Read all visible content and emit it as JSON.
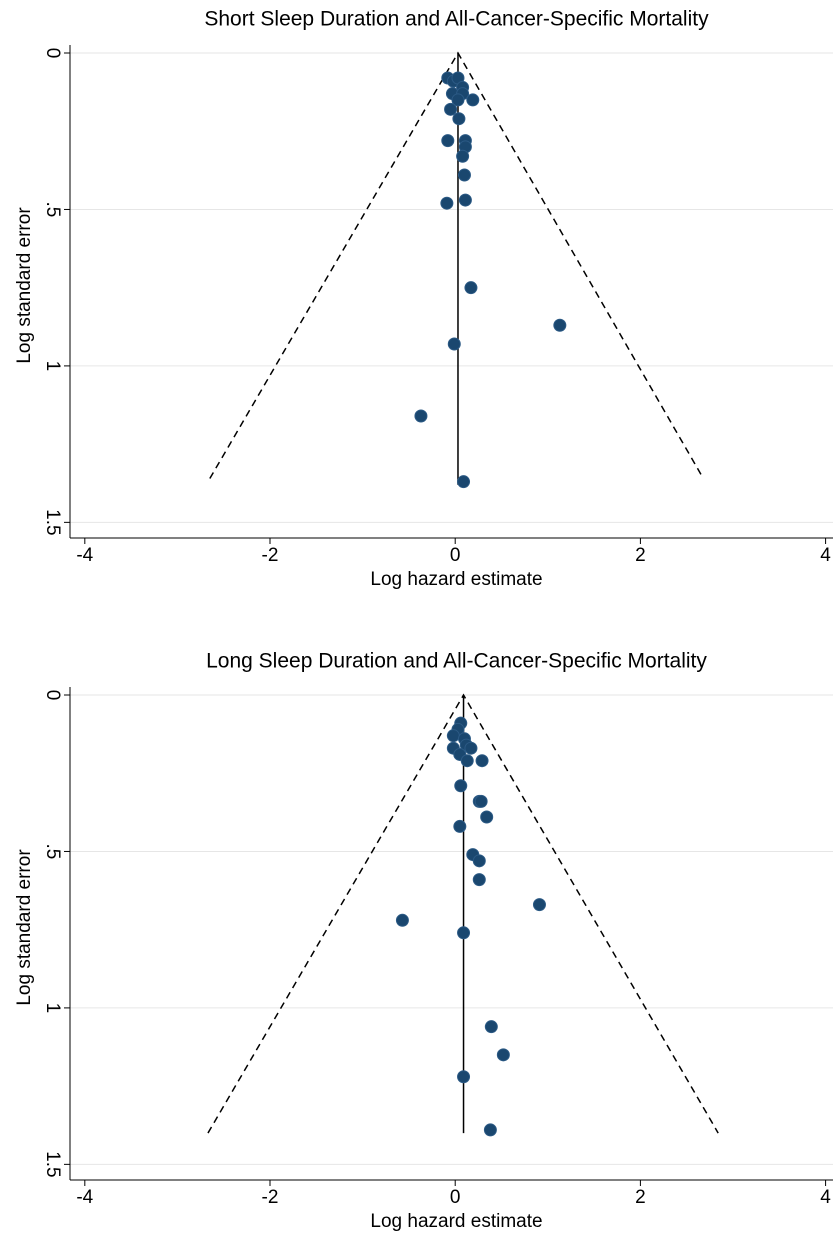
{
  "chart_data": [
    {
      "type": "scatter",
      "title": "Short Sleep Duration and All-Cancer-Specific Mortality",
      "x_label": "Log hazard estimate",
      "y_label": "Log standard error",
      "xlim": [
        -4.16,
        4.08
      ],
      "ylim": [
        0,
        1.55
      ],
      "y_inverted": true,
      "xticks": [
        -4,
        -2,
        0,
        2,
        4
      ],
      "yticks": [
        0,
        {
          "value": 0.5,
          "label": ".5"
        },
        1,
        1.5
      ],
      "grid": true,
      "color": "#1a476f",
      "funnel": {
        "x": [
          -2.65,
          0.03,
          2.68
        ],
        "y": [
          1.36,
          0,
          1.36
        ]
      },
      "pooled_line": {
        "x": [
          0.03,
          0.03
        ],
        "y": [
          0,
          1.38
        ]
      },
      "x": [
        -0.08,
        -0.02,
        0.03,
        0.08,
        -0.03,
        0.08,
        0.03,
        0.19,
        -0.05,
        0.04,
        0.11,
        -0.08,
        0.11,
        0.08,
        0.1,
        -0.09,
        0.11,
        0.17,
        1.13,
        -0.01,
        -0.37,
        0.09
      ],
      "values": [
        0.08,
        0.09,
        0.08,
        0.11,
        0.13,
        0.13,
        0.15,
        0.15,
        0.18,
        0.21,
        0.28,
        0.28,
        0.3,
        0.33,
        0.39,
        0.48,
        0.47,
        0.75,
        0.87,
        0.93,
        1.16,
        1.37
      ]
    },
    {
      "type": "scatter",
      "title": "Long Sleep Duration and All-Cancer-Specific Mortality",
      "x_label": "Log hazard estimate",
      "y_label": "Log standard error",
      "xlim": [
        -4.16,
        4.08
      ],
      "ylim": [
        0,
        1.55
      ],
      "y_inverted": true,
      "xticks": [
        -4,
        -2,
        0,
        2,
        4
      ],
      "yticks": [
        0,
        {
          "value": 0.5,
          "label": ".5"
        },
        1,
        1.5
      ],
      "grid": true,
      "color": "#1a476f",
      "funnel": {
        "x": [
          -2.67,
          0.09,
          2.84
        ],
        "y": [
          1.4,
          0,
          1.4
        ]
      },
      "pooled_line": {
        "x": [
          0.09,
          0.09
        ],
        "y": [
          0,
          1.4
        ]
      },
      "x": [
        0.06,
        0.03,
        -0.02,
        0.1,
        0.12,
        0.17,
        -0.02,
        0.05,
        0.13,
        0.29,
        0.06,
        0.26,
        0.28,
        0.34,
        0.05,
        0.19,
        0.26,
        0.26,
        0.91,
        -0.57,
        0.09,
        0.39,
        0.52,
        0.09,
        0.38
      ],
      "values": [
        0.09,
        0.11,
        0.13,
        0.14,
        0.16,
        0.17,
        0.17,
        0.19,
        0.21,
        0.21,
        0.29,
        0.34,
        0.34,
        0.39,
        0.42,
        0.51,
        0.53,
        0.59,
        0.67,
        0.72,
        0.76,
        1.06,
        1.15,
        1.22,
        1.39
      ]
    }
  ]
}
